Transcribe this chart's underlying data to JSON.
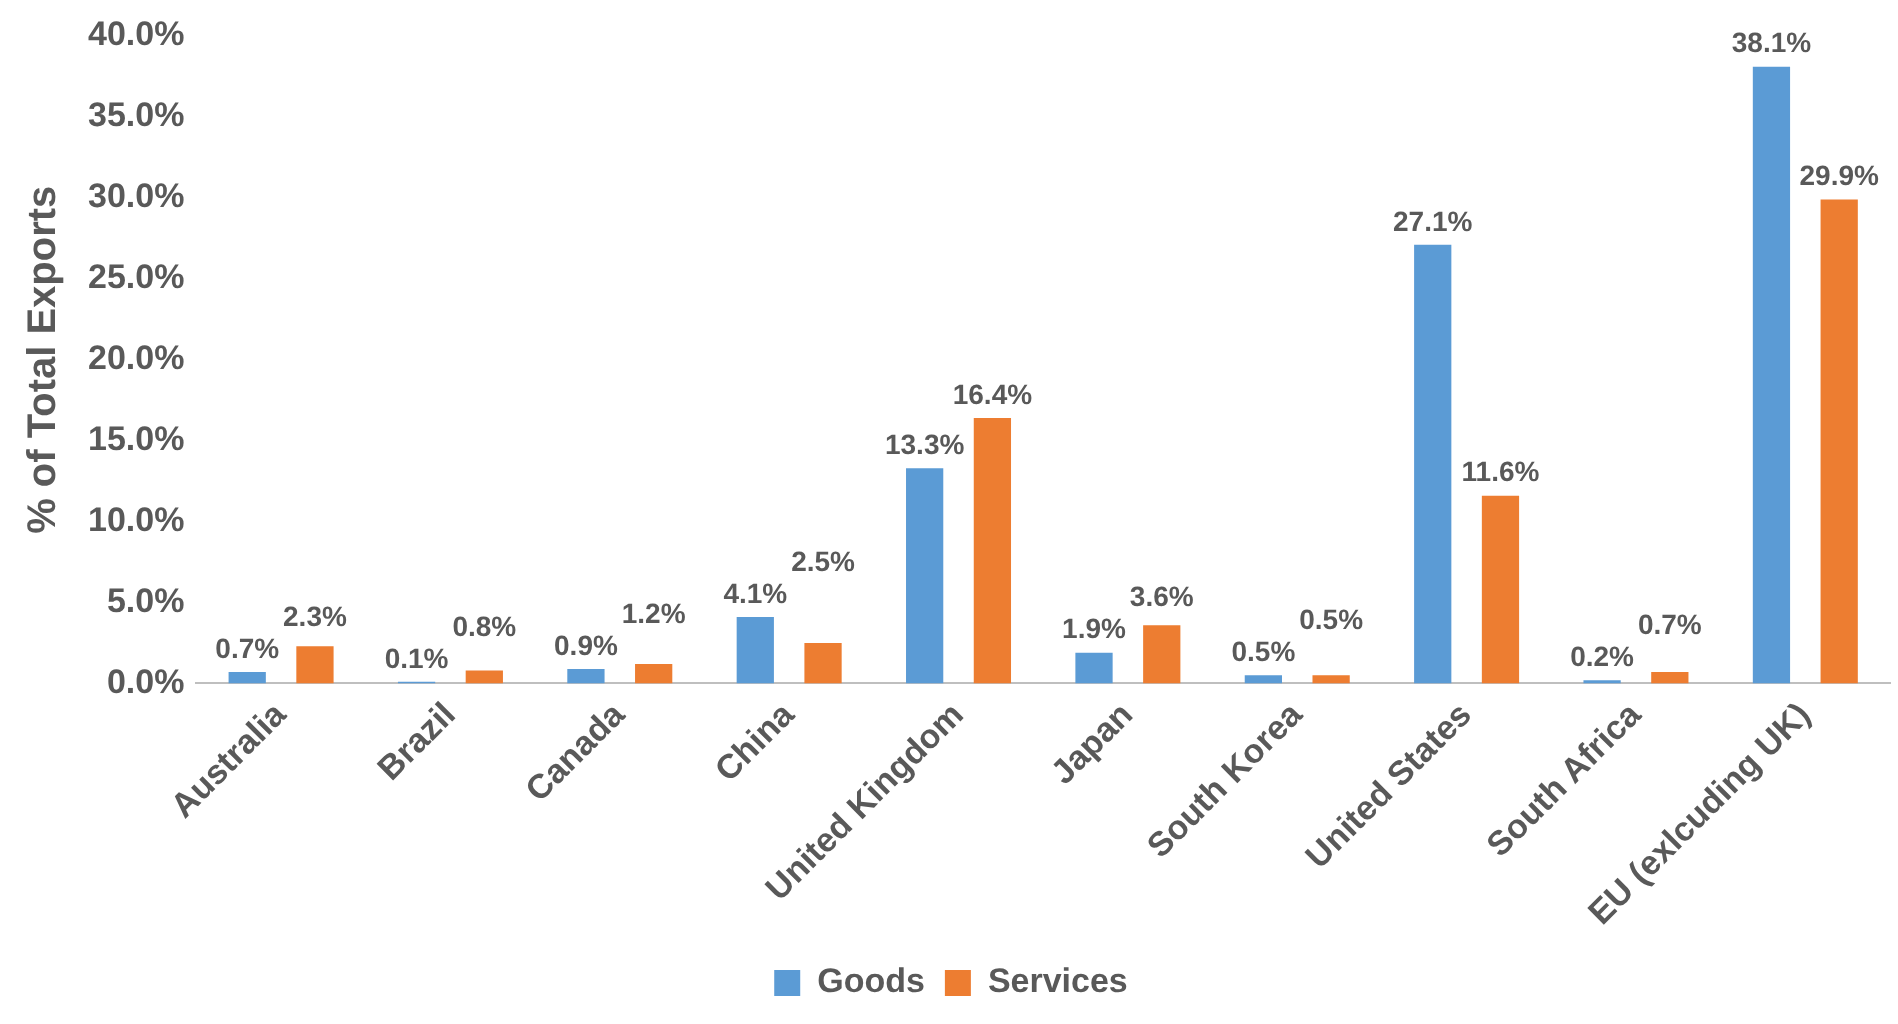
{
  "chart_data": {
    "type": "bar",
    "ylabel": "% of Total Exports",
    "categories": [
      "Australia",
      "Brazil",
      "Canada",
      "China",
      "United Kingdom",
      "Japan",
      "South Korea",
      "United States",
      "South Africa",
      "EU (exlcuding UK)"
    ],
    "series": [
      {
        "name": "Goods",
        "color": "#5b9bd5",
        "values": [
          0.7,
          0.1,
          0.9,
          4.1,
          13.3,
          1.9,
          0.5,
          27.1,
          0.2,
          38.1
        ],
        "value_labels": [
          "0.7%",
          "0.1%",
          "0.9%",
          "4.1%",
          "13.3%",
          "1.9%",
          "0.5%",
          "27.1%",
          "0.2%",
          "38.1%"
        ]
      },
      {
        "name": "Services",
        "color": "#ed7d31",
        "values": [
          2.3,
          0.8,
          1.2,
          2.5,
          16.4,
          3.6,
          0.5,
          11.6,
          0.7,
          29.9
        ],
        "value_labels": [
          "2.3%",
          "0.8%",
          "1.2%",
          "2.5%",
          "16.4%",
          "3.6%",
          "0.5%",
          "11.6%",
          "0.7%",
          "29.9%"
        ]
      }
    ],
    "ylim": [
      0,
      40
    ],
    "yticks": [
      {
        "value": 0,
        "label": "0.0%"
      },
      {
        "value": 5,
        "label": "5.0%"
      },
      {
        "value": 10,
        "label": "10.0%"
      },
      {
        "value": 15,
        "label": "15.0%"
      },
      {
        "value": 20,
        "label": "20.0%"
      },
      {
        "value": 25,
        "label": "25.0%"
      },
      {
        "value": 30,
        "label": "30.0%"
      },
      {
        "value": 35,
        "label": "35.0%"
      },
      {
        "value": 40,
        "label": "40.0%"
      }
    ],
    "grid": false,
    "legend": "bottom"
  }
}
